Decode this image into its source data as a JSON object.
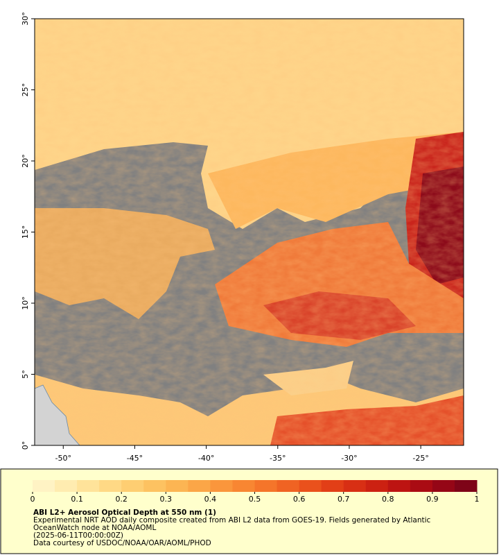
{
  "map": {
    "xlim": [
      -52,
      -22
    ],
    "ylim": [
      0,
      30
    ],
    "xticks": [
      {
        "value": -50,
        "label": "-50°"
      },
      {
        "value": -45,
        "label": "-45°"
      },
      {
        "value": -40,
        "label": "-40°"
      },
      {
        "value": -35,
        "label": "-35°"
      },
      {
        "value": -30,
        "label": "-30°"
      },
      {
        "value": -25,
        "label": "-25°"
      }
    ],
    "yticks": [
      {
        "value": 0,
        "label": "0°"
      },
      {
        "value": 5,
        "label": "5°"
      },
      {
        "value": 10,
        "label": "10°"
      },
      {
        "value": 15,
        "label": "15°"
      },
      {
        "value": 20,
        "label": "20°"
      },
      {
        "value": 25,
        "label": "25°"
      },
      {
        "value": 30,
        "label": "30°"
      }
    ]
  },
  "colorbar": {
    "lim": [
      0,
      1
    ],
    "ticks": [
      0,
      0.1,
      0.2,
      0.3,
      0.4,
      0.5,
      0.6,
      0.7,
      0.8,
      0.9,
      1
    ],
    "colors": [
      "#fff3c4",
      "#ffecb0",
      "#ffe39a",
      "#ffd985",
      "#fece72",
      "#fdc261",
      "#fcb553",
      "#fba647",
      "#fa963c",
      "#f88632",
      "#f5752a",
      "#f06323",
      "#ea511c",
      "#e23f17",
      "#d82f14",
      "#cc2112",
      "#bd1412",
      "#aa0b13",
      "#950616",
      "#7e0418"
    ]
  },
  "caption": {
    "title": "ABI L2+ Aerosol Optical Depth at 550 nm (1)",
    "lines": [
      "Experimental NRT AOD daily composite created from ABI L2 data from GOES-19. Fields generated by Atlantic",
      "OceanWatch node at NOAA/AOML",
      "(2025-06-11T00:00:00Z)",
      "Data courtesy of USDOC/NOAA/OAR/AOML/PHOD"
    ]
  }
}
